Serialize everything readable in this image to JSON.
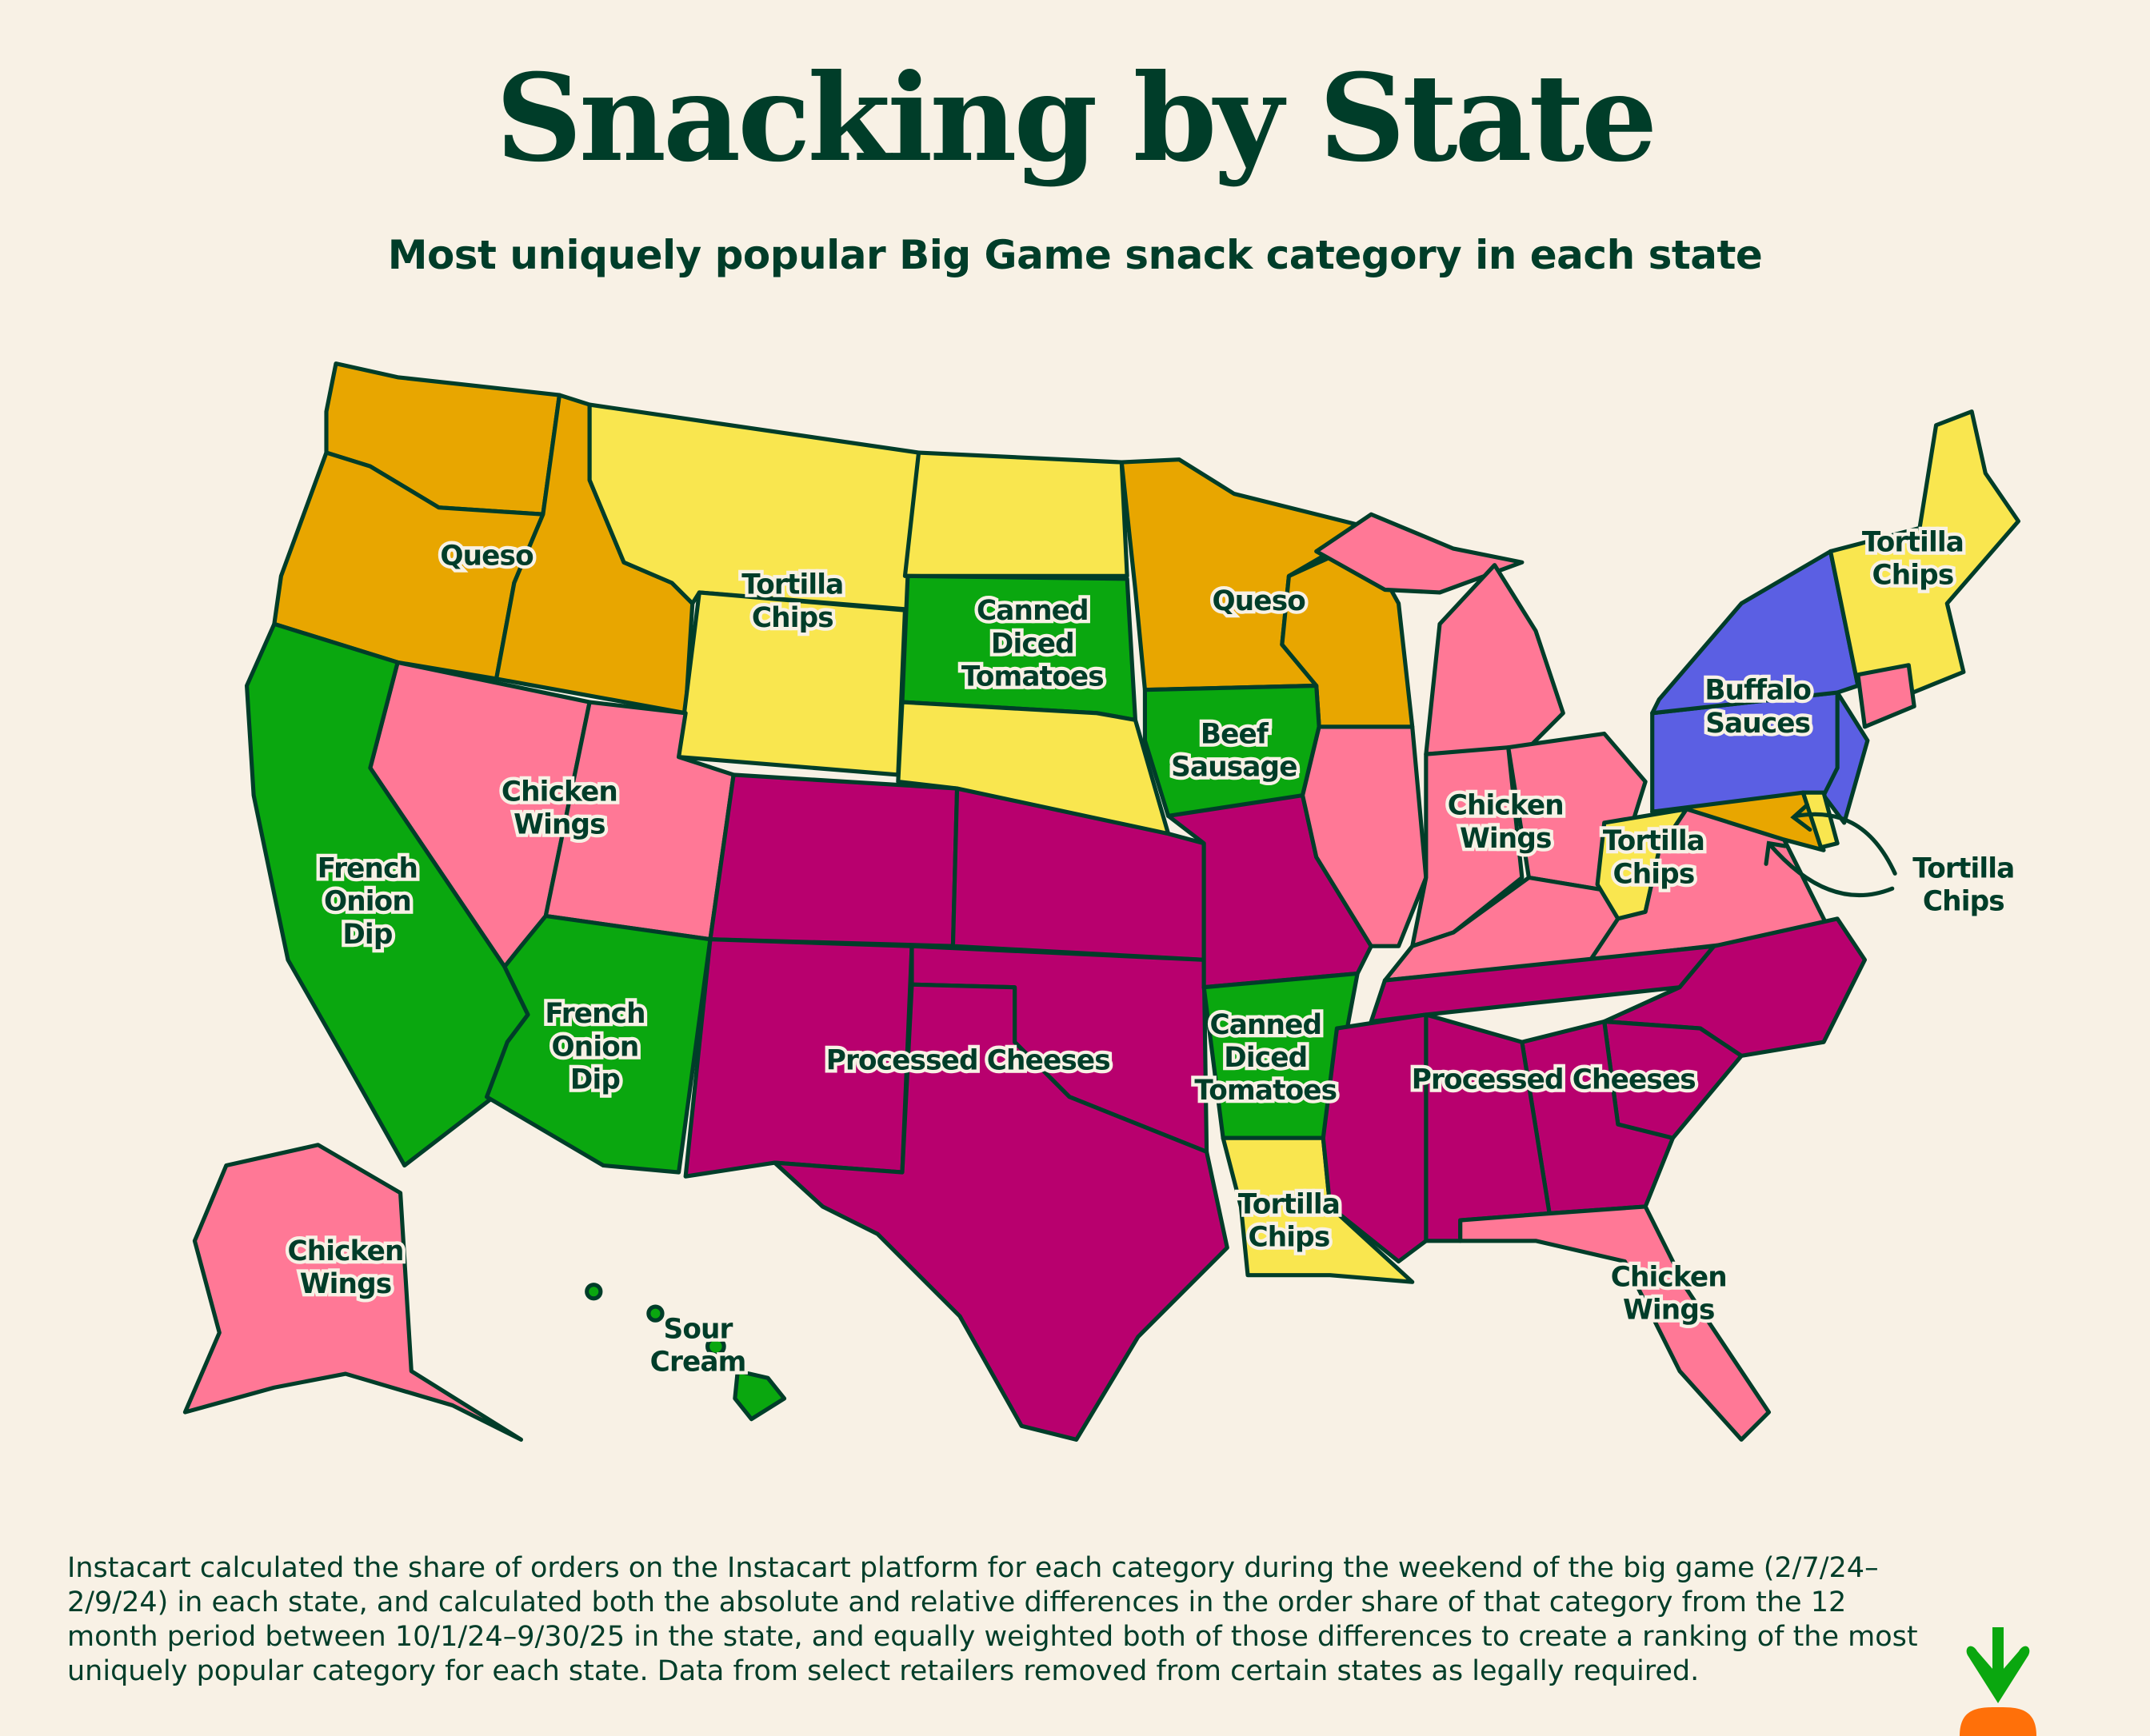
{
  "header": {
    "title": "Snacking by State",
    "subtitle": "Most uniquely popular Big Game snack category in each state"
  },
  "colors": {
    "background": "#F8F1E5",
    "text": "#003D29",
    "queso": "#E8A600",
    "tortilla_chips": "#F9E64F",
    "green_categories": "#0AA70F",
    "chicken_wings": "#FF7896",
    "processed_cheeses": "#B8006E",
    "buffalo_sauces": "#5B5FE3"
  },
  "map": {
    "labels": {
      "queso_west": [
        "Queso"
      ],
      "tortilla_mountain": [
        "Tortilla",
        "Chips"
      ],
      "tomatoes_sd": [
        "Canned",
        "Diced",
        "Tomatoes"
      ],
      "queso_midwest": [
        "Queso"
      ],
      "tortilla_ne": [
        "Tortilla",
        "Chips"
      ],
      "buffalo": [
        "Buffalo",
        "Sauces"
      ],
      "beef_sausage": [
        "Beef",
        "Sausage"
      ],
      "wings_west": [
        "Chicken",
        "Wings"
      ],
      "wings_midwest": [
        "Chicken",
        "Wings"
      ],
      "tortilla_wv": [
        "Tortilla",
        "Chips"
      ],
      "tortilla_de": [
        "Tortilla",
        "Chips"
      ],
      "onion_ca": [
        "French",
        "Onion",
        "Dip"
      ],
      "onion_az": [
        "French",
        "Onion",
        "Dip"
      ],
      "cheeses_sw": [
        "Processed Cheeses"
      ],
      "tomatoes_ar": [
        "Canned",
        "Diced",
        "Tomatoes"
      ],
      "cheeses_se": [
        "Processed Cheeses"
      ],
      "tortilla_la": [
        "Tortilla",
        "Chips"
      ],
      "wings_ak": [
        "Chicken",
        "Wings"
      ],
      "sour_cream": [
        "Sour",
        "Cream"
      ],
      "wings_fl": [
        "Chicken",
        "Wings"
      ]
    }
  },
  "footnote": {
    "lines": [
      "Instacart calculated the share of orders on the Instacart platform for each category during the weekend of the big game (2/7/24–",
      "2/9/24) in each state, and calculated both the absolute and relative differences in the order share of that category from the 12",
      "month period between 10/1/24–9/30/25 in the state, and equally weighted both of those differences to create a ranking of the most",
      "uniquely popular category for each state. Data from select retailers removed from certain states as legally required."
    ]
  },
  "logo": {
    "name": "carrot-logo"
  }
}
